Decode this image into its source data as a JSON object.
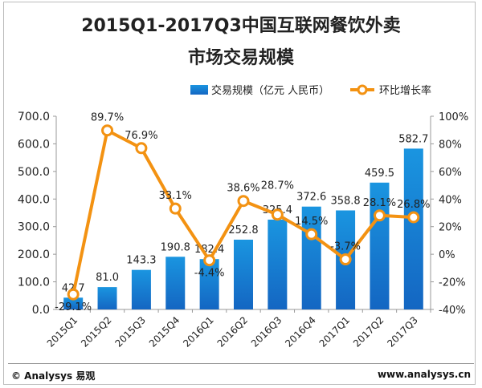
{
  "chart_data": {
    "type": "bar+line",
    "title": "2015Q1-2017Q3中国互联网餐饮外卖",
    "subtitle": "市场交易规模",
    "categories": [
      "2015Q1",
      "2015Q2",
      "2015Q3",
      "2015Q4",
      "2016Q1",
      "2016Q2",
      "2016Q3",
      "2016Q4",
      "2017Q1",
      "2017Q2",
      "2017Q3"
    ],
    "series": [
      {
        "name": "交易规模（亿元 人民币）",
        "type": "bar",
        "axis": "left",
        "color": "#1583d6",
        "values": [
          42.7,
          81.0,
          143.3,
          190.8,
          182.4,
          252.8,
          325.4,
          372.6,
          358.8,
          459.5,
          582.7
        ],
        "labels": [
          "42.7",
          "81.0",
          "143.3",
          "190.8",
          "182.4",
          "252.8",
          "325.4",
          "372.6",
          "358.8",
          "459.5",
          "582.7"
        ]
      },
      {
        "name": "环比增长率",
        "type": "line",
        "axis": "right",
        "color": "#f39212",
        "values": [
          -29.1,
          89.7,
          76.9,
          33.1,
          -4.4,
          38.6,
          28.7,
          14.5,
          -3.7,
          28.1,
          26.8
        ],
        "labels": [
          "-29.1%",
          "89.7%",
          "76.9%",
          "33.1%",
          "-4.4%",
          "38.6%",
          "28.7%",
          "14.5%",
          "-3.7%",
          "28.1%",
          "26.8%"
        ]
      }
    ],
    "ylim_left": [
      0,
      700
    ],
    "yticks_left": [
      "0.0",
      "100.0",
      "200.0",
      "300.0",
      "400.0",
      "500.0",
      "600.0",
      "700.0"
    ],
    "ylim_right": [
      -40,
      100
    ],
    "yticks_right": [
      "-40%",
      "-20%",
      "0%",
      "20%",
      "40%",
      "60%",
      "80%",
      "100%"
    ],
    "legend": "top-right",
    "grid": false
  },
  "footer": {
    "left": "© Analysys 易观",
    "right": "www.analysys.cn"
  }
}
